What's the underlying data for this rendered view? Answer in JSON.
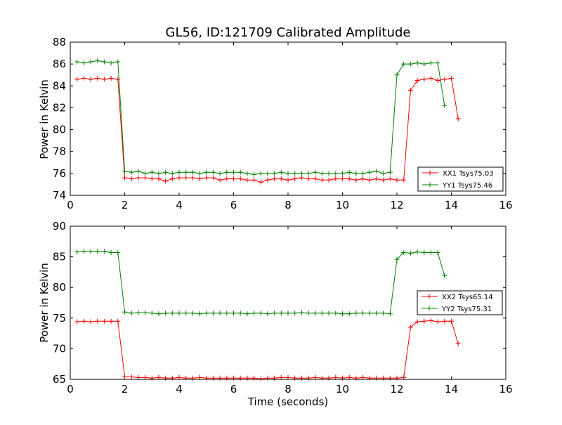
{
  "chart_data": [
    {
      "type": "line",
      "title": "GL56, ID:121709 Calibrated Amplitude",
      "xlabel": "",
      "ylabel": "Power in Kelvin",
      "xlim": [
        0,
        16
      ],
      "ylim": [
        74,
        88
      ],
      "xticks": [
        "0",
        "2",
        "4",
        "6",
        "8",
        "10",
        "12",
        "14",
        "16"
      ],
      "yticks": [
        "74",
        "76",
        "78",
        "80",
        "82",
        "84",
        "86",
        "88"
      ],
      "grid": false,
      "legend_position": "lower-right",
      "x": [
        0.25,
        0.5,
        0.75,
        1.0,
        1.25,
        1.5,
        1.75,
        2.0,
        2.25,
        2.5,
        2.75,
        3.0,
        3.25,
        3.5,
        3.75,
        4.0,
        4.25,
        4.5,
        4.75,
        5.0,
        5.25,
        5.5,
        5.75,
        6.0,
        6.25,
        6.5,
        6.75,
        7.0,
        7.25,
        7.5,
        7.75,
        8.0,
        8.25,
        8.5,
        8.75,
        9.0,
        9.25,
        9.5,
        9.75,
        10.0,
        10.25,
        10.5,
        10.75,
        11.0,
        11.25,
        11.5,
        11.75,
        12.0,
        12.25,
        12.5,
        12.75,
        13.0,
        13.25,
        13.5,
        13.75,
        14.0,
        14.25,
        14.5,
        14.75
      ],
      "series": [
        {
          "name": "XX1 Tsys75.03",
          "color": "#ff0000",
          "values": [
            84.6,
            84.7,
            84.6,
            84.7,
            84.6,
            84.7,
            84.6,
            75.6,
            75.5,
            75.6,
            75.6,
            75.5,
            75.5,
            75.3,
            75.5,
            75.6,
            75.6,
            75.6,
            75.5,
            75.6,
            75.6,
            75.4,
            75.5,
            75.5,
            75.5,
            75.4,
            75.4,
            75.2,
            75.4,
            75.5,
            75.5,
            75.4,
            75.5,
            75.6,
            75.5,
            75.5,
            75.4,
            75.4,
            75.5,
            75.5,
            75.5,
            75.4,
            75.5,
            75.4,
            75.5,
            75.4,
            75.5,
            75.4,
            75.4,
            83.6,
            84.5,
            84.6,
            84.7,
            84.5,
            84.6,
            84.7,
            81.0,
            null,
            null
          ]
        },
        {
          "name": "YY1 Tsys75.46",
          "color": "#008000",
          "values": [
            86.2,
            86.1,
            86.2,
            86.3,
            86.2,
            86.1,
            86.2,
            76.2,
            76.1,
            76.2,
            76.0,
            76.1,
            76.0,
            76.1,
            76.0,
            76.1,
            76.1,
            76.1,
            76.0,
            76.1,
            76.1,
            76.0,
            76.1,
            76.1,
            76.1,
            76.0,
            75.9,
            76.0,
            76.0,
            76.0,
            76.1,
            76.0,
            76.0,
            76.0,
            76.0,
            76.1,
            76.0,
            76.0,
            76.0,
            76.0,
            76.1,
            76.0,
            76.0,
            76.1,
            76.2,
            76.0,
            76.1,
            85.0,
            86.0,
            86.0,
            86.1,
            86.0,
            86.1,
            86.1,
            82.2,
            null,
            null,
            null,
            null
          ]
        }
      ]
    },
    {
      "type": "line",
      "title": "",
      "xlabel": "Time (seconds)",
      "ylabel": "Power in Kelvin",
      "xlim": [
        0,
        16
      ],
      "ylim": [
        65,
        90
      ],
      "xticks": [
        "0",
        "2",
        "4",
        "6",
        "8",
        "10",
        "12",
        "14",
        "16"
      ],
      "yticks": [
        "65",
        "70",
        "75",
        "80",
        "85",
        "90"
      ],
      "grid": false,
      "legend_position": "center-right",
      "x": [
        0.25,
        0.5,
        0.75,
        1.0,
        1.25,
        1.5,
        1.75,
        2.0,
        2.25,
        2.5,
        2.75,
        3.0,
        3.25,
        3.5,
        3.75,
        4.0,
        4.25,
        4.5,
        4.75,
        5.0,
        5.25,
        5.5,
        5.75,
        6.0,
        6.25,
        6.5,
        6.75,
        7.0,
        7.25,
        7.5,
        7.75,
        8.0,
        8.25,
        8.5,
        8.75,
        9.0,
        9.25,
        9.5,
        9.75,
        10.0,
        10.25,
        10.5,
        10.75,
        11.0,
        11.25,
        11.5,
        11.75,
        12.0,
        12.25,
        12.5,
        12.75,
        13.0,
        13.25,
        13.5,
        13.75,
        14.0,
        14.25,
        14.5,
        14.75
      ],
      "series": [
        {
          "name": "XX2 Tsys65.14",
          "color": "#ff0000",
          "values": [
            74.4,
            74.5,
            74.4,
            74.5,
            74.5,
            74.5,
            74.5,
            65.4,
            65.4,
            65.3,
            65.3,
            65.2,
            65.3,
            65.2,
            65.2,
            65.3,
            65.2,
            65.2,
            65.3,
            65.2,
            65.2,
            65.2,
            65.2,
            65.2,
            65.2,
            65.2,
            65.2,
            65.1,
            65.2,
            65.2,
            65.3,
            65.3,
            65.2,
            65.2,
            65.2,
            65.3,
            65.2,
            65.2,
            65.3,
            65.2,
            65.3,
            65.2,
            65.3,
            65.2,
            65.2,
            65.2,
            65.2,
            65.2,
            65.3,
            73.5,
            74.4,
            74.5,
            74.6,
            74.4,
            74.5,
            74.5,
            70.8,
            null,
            null
          ]
        },
        {
          "name": "YY2 Tsys75.31",
          "color": "#008000",
          "values": [
            85.8,
            85.9,
            85.9,
            85.9,
            85.9,
            85.7,
            85.7,
            76.0,
            75.8,
            75.9,
            75.9,
            75.8,
            75.7,
            75.8,
            75.8,
            75.8,
            75.8,
            75.8,
            75.7,
            75.8,
            75.8,
            75.8,
            75.8,
            75.8,
            75.8,
            75.7,
            75.8,
            75.8,
            75.7,
            75.8,
            75.8,
            75.8,
            75.8,
            75.9,
            75.8,
            75.8,
            75.8,
            75.8,
            75.8,
            75.7,
            75.7,
            75.8,
            75.8,
            75.8,
            75.8,
            75.8,
            75.7,
            84.6,
            85.7,
            85.6,
            85.8,
            85.7,
            85.7,
            85.7,
            81.9,
            null,
            null,
            null,
            null
          ]
        }
      ]
    }
  ]
}
